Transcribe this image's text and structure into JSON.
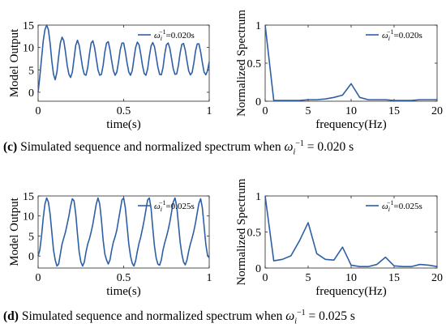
{
  "chart_data": [
    {
      "id": "c-time",
      "type": "line",
      "ylabel": "Model Output",
      "xlabel": "time(s)",
      "xlim": [
        0,
        1
      ],
      "ylim": [
        -2,
        15
      ],
      "xticks": [
        "0",
        "0.5",
        "1"
      ],
      "xtick_values": [
        0,
        0.5,
        1
      ],
      "yticks": [
        "0",
        "5",
        "10",
        "15"
      ],
      "ytick_values": [
        0,
        5,
        10,
        15
      ],
      "legend": "ω_i^{-1}=0.020s",
      "legend_position": "top-right",
      "series": [
        {
          "x": [
            0.0,
            0.01,
            0.02,
            0.03,
            0.04,
            0.05,
            0.06,
            0.07,
            0.08,
            0.09,
            0.1,
            0.11,
            0.12,
            0.13,
            0.14,
            0.15,
            0.16,
            0.17,
            0.18,
            0.19,
            0.2,
            0.21,
            0.22,
            0.23,
            0.24,
            0.25,
            0.26,
            0.27,
            0.28,
            0.29,
            0.3,
            0.31,
            0.32,
            0.33,
            0.34,
            0.35,
            0.36,
            0.37,
            0.38,
            0.39,
            0.4,
            0.41,
            0.42,
            0.43,
            0.44,
            0.45,
            0.46,
            0.47,
            0.48,
            0.49,
            0.5,
            0.51,
            0.52,
            0.53,
            0.54,
            0.55,
            0.56,
            0.57,
            0.58,
            0.59,
            0.6,
            0.61,
            0.62,
            0.63,
            0.64,
            0.65,
            0.66,
            0.67,
            0.68,
            0.69,
            0.7,
            0.71,
            0.72,
            0.73,
            0.74,
            0.75,
            0.76,
            0.77,
            0.78,
            0.79,
            0.8,
            0.81,
            0.82,
            0.83,
            0.84,
            0.85,
            0.86,
            0.87,
            0.88,
            0.89,
            0.9,
            0.91,
            0.92,
            0.93,
            0.94,
            0.95,
            0.96,
            0.97,
            0.98,
            0.99,
            1.0
          ],
          "y": [
            0.0,
            3.5,
            7.5,
            11.5,
            14.0,
            15.0,
            14.0,
            11.0,
            7.0,
            4.0,
            2.8,
            4.5,
            8.0,
            11.0,
            12.3,
            11.5,
            9.0,
            6.0,
            4.0,
            3.3,
            4.5,
            7.5,
            10.5,
            11.6,
            10.5,
            8.0,
            5.5,
            4.0,
            3.8,
            5.5,
            8.5,
            11.0,
            11.5,
            10.0,
            7.5,
            5.0,
            3.8,
            4.0,
            6.0,
            9.0,
            11.0,
            11.3,
            9.5,
            7.0,
            4.8,
            3.8,
            4.5,
            6.8,
            9.5,
            11.0,
            11.0,
            9.0,
            6.5,
            4.5,
            3.8,
            4.8,
            7.5,
            10.0,
            11.2,
            10.6,
            8.5,
            6.0,
            4.2,
            3.8,
            5.2,
            8.0,
            10.3,
            11.1,
            10.2,
            8.0,
            5.6,
            4.0,
            3.9,
            5.5,
            8.5,
            10.6,
            11.0,
            9.8,
            7.5,
            5.2,
            4.0,
            4.1,
            6.0,
            8.8,
            10.7,
            10.9,
            9.4,
            7.0,
            4.8,
            3.9,
            4.4,
            6.5,
            9.2,
            10.8,
            10.8,
            9.0,
            6.6,
            4.5,
            3.9,
            4.8,
            6.8
          ]
        }
      ]
    },
    {
      "id": "c-spec",
      "type": "line",
      "ylabel": "Normalized Spectrum",
      "xlabel": "frequency(Hz)",
      "xlim": [
        0,
        20
      ],
      "ylim": [
        0,
        1
      ],
      "xticks": [
        "0",
        "5",
        "10",
        "15",
        "20"
      ],
      "xtick_values": [
        0,
        5,
        10,
        15,
        20
      ],
      "yticks": [
        "0",
        "0.5",
        "1"
      ],
      "ytick_values": [
        0,
        0.5,
        1
      ],
      "legend": "ω_i^{-1}=0.020s",
      "legend_position": "top-right",
      "series": [
        {
          "x": [
            0,
            1,
            2,
            3,
            4,
            5,
            6,
            7,
            8,
            9,
            10,
            11,
            12,
            13,
            14,
            15,
            16,
            17,
            18,
            19,
            20
          ],
          "y": [
            1.0,
            0.01,
            0.01,
            0.01,
            0.01,
            0.02,
            0.02,
            0.03,
            0.05,
            0.08,
            0.23,
            0.05,
            0.02,
            0.02,
            0.02,
            0.01,
            0.01,
            0.01,
            0.02,
            0.02,
            0.02
          ]
        }
      ]
    },
    {
      "id": "d-time",
      "type": "line",
      "ylabel": "Model Output",
      "xlabel": "time(s)",
      "xlim": [
        0,
        1
      ],
      "ylim": [
        -3,
        15
      ],
      "xticks": [
        "0",
        "0.5",
        "1"
      ],
      "xtick_values": [
        0,
        0.5,
        1
      ],
      "yticks": [
        "0",
        "5",
        "10",
        "15"
      ],
      "ytick_values": [
        0,
        5,
        10,
        15
      ],
      "legend": "ω_i^{-1}=0.025s",
      "legend_position": "top-right",
      "series": [
        {
          "x": [
            0.0,
            0.01,
            0.02,
            0.03,
            0.04,
            0.05,
            0.06,
            0.07,
            0.08,
            0.09,
            0.1,
            0.11,
            0.12,
            0.13,
            0.14,
            0.15,
            0.16,
            0.17,
            0.18,
            0.19,
            0.2,
            0.21,
            0.22,
            0.23,
            0.24,
            0.25,
            0.26,
            0.27,
            0.28,
            0.29,
            0.3,
            0.31,
            0.32,
            0.33,
            0.34,
            0.35,
            0.36,
            0.37,
            0.38,
            0.39,
            0.4,
            0.41,
            0.42,
            0.43,
            0.44,
            0.45,
            0.46,
            0.47,
            0.48,
            0.49,
            0.5,
            0.51,
            0.52,
            0.53,
            0.54,
            0.55,
            0.56,
            0.57,
            0.58,
            0.59,
            0.6,
            0.61,
            0.62,
            0.63,
            0.64,
            0.65,
            0.66,
            0.67,
            0.68,
            0.69,
            0.7,
            0.71,
            0.72,
            0.73,
            0.74,
            0.75,
            0.76,
            0.77,
            0.78,
            0.79,
            0.8,
            0.81,
            0.82,
            0.83,
            0.84,
            0.85,
            0.86,
            0.87,
            0.88,
            0.89,
            0.9,
            0.91,
            0.92,
            0.93,
            0.94,
            0.95,
            0.96,
            0.97,
            0.98,
            0.99,
            1.0
          ],
          "y": [
            0.0,
            1.5,
            5.0,
            9.5,
            13.0,
            14.5,
            13.5,
            10.5,
            6.0,
            1.5,
            -1.0,
            -2.5,
            -2.0,
            0.5,
            3.0,
            4.5,
            6.0,
            8.0,
            10.0,
            12.5,
            14.3,
            13.8,
            10.5,
            5.5,
            1.0,
            -1.5,
            -2.5,
            -1.5,
            1.0,
            3.0,
            4.3,
            6.0,
            8.0,
            10.5,
            13.0,
            14.5,
            13.0,
            9.0,
            4.0,
            0.5,
            -1.0,
            -2.0,
            -1.0,
            1.5,
            3.5,
            4.8,
            6.5,
            9.0,
            11.5,
            14.0,
            14.5,
            12.0,
            7.5,
            3.0,
            0.0,
            -1.8,
            -2.5,
            -1.2,
            1.2,
            3.2,
            4.8,
            6.8,
            9.0,
            11.5,
            14.0,
            14.5,
            12.0,
            7.0,
            2.5,
            -0.5,
            -2.0,
            -2.3,
            -1.0,
            1.5,
            3.3,
            4.8,
            6.5,
            8.5,
            11.0,
            13.5,
            14.5,
            12.5,
            8.0,
            3.5,
            0.5,
            -1.5,
            -2.2,
            -1.0,
            1.2,
            3.0,
            4.5,
            6.2,
            8.3,
            10.8,
            13.2,
            14.3,
            12.0,
            7.5,
            3.0,
            0.2,
            -0.5
          ]
        }
      ]
    },
    {
      "id": "d-spec",
      "type": "line",
      "ylabel": "Normalized Spectrum",
      "xlabel": "frequency(Hz)",
      "xlim": [
        0,
        20
      ],
      "ylim": [
        0,
        1
      ],
      "xticks": [
        "0",
        "5",
        "10",
        "15",
        "20"
      ],
      "xtick_values": [
        0,
        5,
        10,
        15,
        20
      ],
      "yticks": [
        "0",
        "0.5",
        "1"
      ],
      "ytick_values": [
        0,
        0.5,
        1
      ],
      "legend": "ω_i^{-1}=0.025s",
      "legend_position": "top-right",
      "series": [
        {
          "x": [
            0,
            1,
            2,
            3,
            4,
            5,
            6,
            7,
            8,
            9,
            10,
            11,
            12,
            13,
            14,
            15,
            16,
            17,
            18,
            19,
            20
          ],
          "y": [
            1.0,
            0.1,
            0.12,
            0.17,
            0.38,
            0.63,
            0.2,
            0.12,
            0.11,
            0.29,
            0.04,
            0.02,
            0.02,
            0.05,
            0.15,
            0.03,
            0.02,
            0.02,
            0.05,
            0.04,
            0.02
          ]
        }
      ]
    }
  ],
  "line_color": "#2e5fa6",
  "captions": {
    "c": {
      "tag": "(c)",
      "text": " Simulated sequence and normalized spectrum when ",
      "symbol": "ω",
      "sub": "i",
      "sup": "−1",
      "tail": " = 0.020 s"
    },
    "d": {
      "tag": "(d)",
      "text": " Simulated sequence and normalized spectrum when ",
      "symbol": "ω",
      "sub": "i",
      "sup": "−1",
      "tail": " = 0.025 s"
    }
  }
}
